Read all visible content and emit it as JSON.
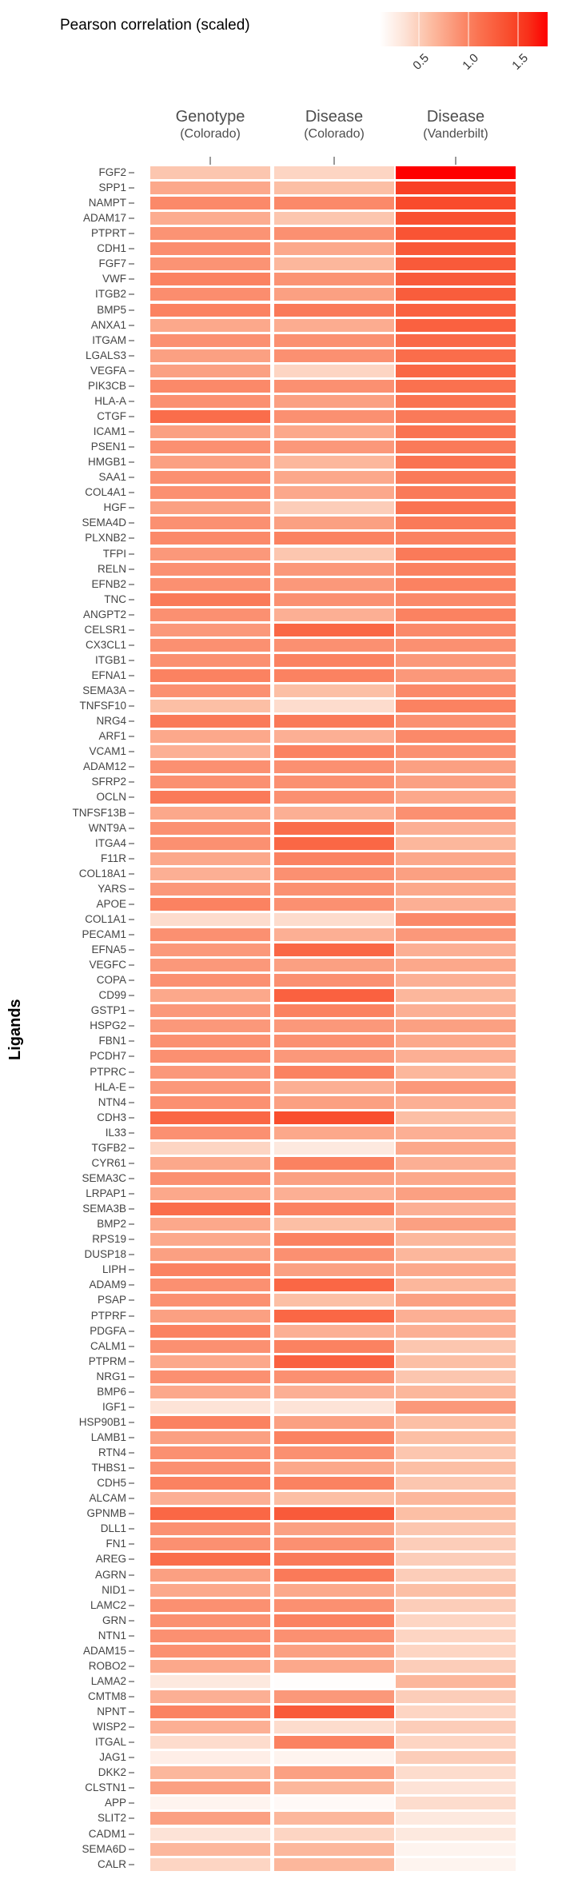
{
  "legend": {
    "title": "Pearson correlation (scaled)",
    "ticks": [
      {
        "label": "0.5",
        "value": 0.5
      },
      {
        "label": "1.0",
        "value": 1.0
      },
      {
        "label": "1.5",
        "value": 1.5
      }
    ],
    "domain": [
      0.1,
      1.8
    ],
    "gradient_stops": [
      {
        "v": 0.1,
        "c": "#FFFFFF"
      },
      {
        "v": 0.35,
        "c": "#FDE3D7"
      },
      {
        "v": 0.6,
        "c": "#FCBFA5"
      },
      {
        "v": 0.9,
        "c": "#FB9071"
      },
      {
        "v": 1.1,
        "c": "#FA7351"
      },
      {
        "v": 1.4,
        "c": "#F94E2E"
      },
      {
        "v": 1.6,
        "c": "#F8301A"
      },
      {
        "v": 1.8,
        "c": "#FE0000"
      }
    ]
  },
  "y_axis_title": "Ligands",
  "columns": [
    {
      "label": "Genotype",
      "sublabel": "(Colorado)"
    },
    {
      "label": "Disease",
      "sublabel": "(Colorado)"
    },
    {
      "label": "Disease",
      "sublabel": "(Vanderbilt)"
    }
  ],
  "chart_data": {
    "type": "heatmap",
    "title": "Pearson correlation (scaled)",
    "ylabel": "Ligands",
    "legend_position": "top",
    "grid": "off",
    "color_scale": {
      "min": 0.1,
      "max": 1.8,
      "low_color": "#FFFFFF",
      "high_color": "#FE0000",
      "legend_ticks": [
        0.5,
        1.0,
        1.5
      ]
    },
    "columns": [
      "Genotype (Colorado)",
      "Disease (Colorado)",
      "Disease (Vanderbilt)"
    ],
    "rows": [
      "FGF2",
      "SPP1",
      "NAMPT",
      "ADAM17",
      "PTPRT",
      "CDH1",
      "FGF7",
      "VWF",
      "ITGB2",
      "BMP5",
      "ANXA1",
      "ITGAM",
      "LGALS3",
      "VEGFA",
      "PIK3CB",
      "HLA-A",
      "CTGF",
      "ICAM1",
      "PSEN1",
      "HMGB1",
      "SAA1",
      "COL4A1",
      "HGF",
      "SEMA4D",
      "PLXNB2",
      "TFPI",
      "RELN",
      "EFNB2",
      "TNC",
      "ANGPT2",
      "CELSR1",
      "CX3CL1",
      "ITGB1",
      "EFNA1",
      "SEMA3A",
      "TNFSF10",
      "NRG4",
      "ARF1",
      "VCAM1",
      "ADAM12",
      "SFRP2",
      "OCLN",
      "TNFSF13B",
      "WNT9A",
      "ITGA4",
      "F11R",
      "COL18A1",
      "YARS",
      "APOE",
      "COL1A1",
      "PECAM1",
      "EFNA5",
      "VEGFC",
      "COPA",
      "CD99",
      "GSTP1",
      "HSPG2",
      "FBN1",
      "PCDH7",
      "PTPRC",
      "HLA-E",
      "NTN4",
      "CDH3",
      "IL33",
      "TGFB2",
      "CYR61",
      "SEMA3C",
      "LRPAP1",
      "SEMA3B",
      "BMP2",
      "RPS19",
      "DUSP18",
      "LIPH",
      "ADAM9",
      "PSAP",
      "PTPRF",
      "PDGFA",
      "CALM1",
      "PTPRM",
      "NRG1",
      "BMP6",
      "IGF1",
      "HSP90B1",
      "LAMB1",
      "RTN4",
      "THBS1",
      "CDH5",
      "ALCAM",
      "GPNMB",
      "DLL1",
      "FN1",
      "AREG",
      "AGRN",
      "NID1",
      "LAMC2",
      "GRN",
      "NTN1",
      "ADAM15",
      "ROBO2",
      "LAMA2",
      "CMTM8",
      "NPNT",
      "WISP2",
      "ITGAL",
      "JAG1",
      "DKK2",
      "CLSTN1",
      "APP",
      "SLIT2",
      "CADM1",
      "SEMA6D",
      "CALR"
    ],
    "values": [
      [
        0.55,
        0.45,
        1.8
      ],
      [
        0.75,
        0.6,
        1.5
      ],
      [
        0.95,
        0.95,
        1.42
      ],
      [
        0.72,
        0.55,
        1.38
      ],
      [
        0.88,
        0.9,
        1.35
      ],
      [
        0.92,
        0.75,
        1.32
      ],
      [
        0.88,
        0.65,
        1.3
      ],
      [
        1.0,
        0.88,
        1.3
      ],
      [
        0.92,
        0.8,
        1.28
      ],
      [
        1.0,
        1.05,
        1.25
      ],
      [
        0.75,
        0.72,
        1.25
      ],
      [
        0.9,
        0.9,
        1.18
      ],
      [
        0.8,
        0.9,
        1.15
      ],
      [
        0.8,
        0.45,
        1.2
      ],
      [
        0.95,
        0.9,
        1.12
      ],
      [
        0.9,
        0.8,
        1.1
      ],
      [
        1.15,
        0.9,
        1.05
      ],
      [
        0.8,
        0.75,
        1.1
      ],
      [
        0.9,
        0.85,
        1.05
      ],
      [
        0.8,
        0.65,
        1.1
      ],
      [
        0.9,
        0.75,
        1.05
      ],
      [
        0.9,
        0.75,
        1.05
      ],
      [
        0.8,
        0.5,
        1.1
      ],
      [
        0.9,
        0.8,
        1.05
      ],
      [
        0.95,
        1.0,
        1.0
      ],
      [
        0.85,
        0.55,
        1.05
      ],
      [
        0.9,
        0.85,
        1.0
      ],
      [
        0.9,
        0.85,
        1.0
      ],
      [
        1.05,
        0.9,
        0.95
      ],
      [
        0.9,
        0.7,
        1.0
      ],
      [
        0.85,
        1.2,
        0.95
      ],
      [
        0.9,
        0.9,
        0.9
      ],
      [
        0.9,
        1.0,
        0.85
      ],
      [
        1.0,
        1.0,
        0.85
      ],
      [
        0.9,
        0.6,
        0.95
      ],
      [
        0.6,
        0.4,
        1.0
      ],
      [
        1.05,
        1.05,
        0.9
      ],
      [
        0.75,
        0.7,
        0.95
      ],
      [
        0.7,
        1.0,
        0.9
      ],
      [
        0.9,
        0.9,
        0.8
      ],
      [
        0.9,
        0.9,
        0.8
      ],
      [
        1.05,
        0.9,
        0.75
      ],
      [
        0.75,
        0.7,
        0.9
      ],
      [
        0.9,
        1.15,
        0.7
      ],
      [
        0.9,
        1.2,
        0.65
      ],
      [
        0.75,
        1.0,
        0.75
      ],
      [
        0.7,
        0.9,
        0.8
      ],
      [
        0.85,
        0.9,
        0.75
      ],
      [
        1.0,
        0.9,
        0.7
      ],
      [
        0.4,
        0.4,
        0.95
      ],
      [
        0.9,
        0.7,
        0.85
      ],
      [
        0.85,
        1.2,
        0.7
      ],
      [
        0.85,
        0.8,
        0.75
      ],
      [
        0.9,
        0.9,
        0.7
      ],
      [
        0.75,
        1.25,
        0.65
      ],
      [
        0.85,
        1.0,
        0.7
      ],
      [
        0.85,
        0.85,
        0.8
      ],
      [
        0.9,
        0.9,
        0.75
      ],
      [
        0.9,
        0.85,
        0.7
      ],
      [
        0.85,
        1.0,
        0.65
      ],
      [
        0.85,
        0.7,
        0.85
      ],
      [
        0.9,
        0.8,
        0.7
      ],
      [
        1.2,
        1.4,
        0.6
      ],
      [
        0.9,
        0.75,
        0.7
      ],
      [
        0.45,
        0.3,
        0.75
      ],
      [
        0.75,
        1.0,
        0.7
      ],
      [
        0.9,
        0.8,
        0.75
      ],
      [
        0.75,
        0.7,
        0.8
      ],
      [
        1.15,
        1.0,
        0.7
      ],
      [
        0.75,
        0.6,
        0.8
      ],
      [
        0.75,
        1.0,
        0.65
      ],
      [
        0.8,
        0.9,
        0.65
      ],
      [
        1.0,
        0.8,
        0.75
      ],
      [
        0.9,
        1.2,
        0.65
      ],
      [
        0.9,
        0.6,
        0.8
      ],
      [
        0.8,
        1.2,
        0.7
      ],
      [
        1.0,
        0.7,
        0.7
      ],
      [
        0.9,
        1.0,
        0.55
      ],
      [
        0.75,
        1.25,
        0.6
      ],
      [
        0.9,
        0.9,
        0.55
      ],
      [
        0.75,
        0.7,
        0.65
      ],
      [
        0.35,
        0.35,
        0.85
      ],
      [
        1.0,
        0.8,
        0.6
      ],
      [
        0.8,
        1.0,
        0.6
      ],
      [
        0.9,
        0.9,
        0.55
      ],
      [
        0.9,
        0.75,
        0.6
      ],
      [
        1.0,
        1.0,
        0.55
      ],
      [
        0.7,
        0.6,
        0.65
      ],
      [
        1.2,
        1.3,
        0.6
      ],
      [
        0.9,
        0.8,
        0.55
      ],
      [
        0.9,
        0.9,
        0.5
      ],
      [
        1.15,
        1.05,
        0.5
      ],
      [
        0.8,
        1.05,
        0.5
      ],
      [
        0.75,
        0.75,
        0.6
      ],
      [
        0.9,
        0.9,
        0.5
      ],
      [
        0.9,
        1.0,
        0.45
      ],
      [
        0.9,
        0.9,
        0.45
      ],
      [
        0.9,
        0.8,
        0.45
      ],
      [
        0.75,
        0.75,
        0.5
      ],
      [
        0.3,
        0.12,
        0.65
      ],
      [
        0.7,
        0.85,
        0.5
      ],
      [
        1.0,
        1.3,
        0.45
      ],
      [
        0.7,
        0.4,
        0.5
      ],
      [
        0.4,
        1.0,
        0.45
      ],
      [
        0.25,
        0.2,
        0.5
      ],
      [
        0.65,
        0.8,
        0.4
      ],
      [
        0.8,
        0.65,
        0.35
      ],
      [
        0.2,
        0.15,
        0.4
      ],
      [
        0.8,
        0.65,
        0.3
      ],
      [
        0.35,
        0.45,
        0.3
      ],
      [
        0.65,
        0.65,
        0.2
      ],
      [
        0.45,
        0.65,
        0.2
      ]
    ]
  }
}
